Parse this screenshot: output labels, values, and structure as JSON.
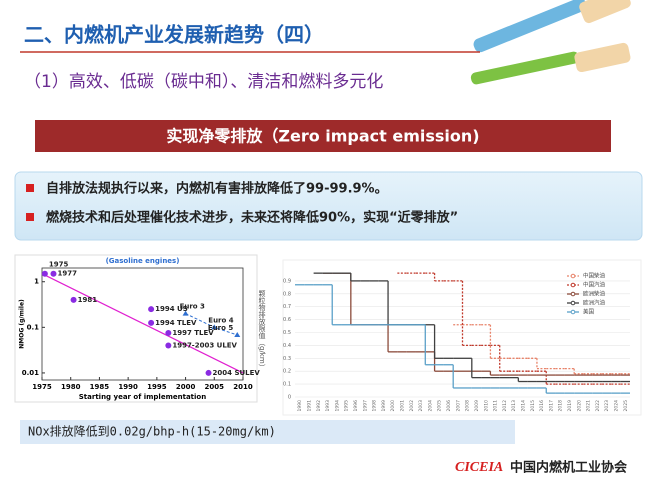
{
  "header": {
    "title": "二、内燃机产业发展新趋势（四）",
    "subtitle": "（1）高效、低碳（碳中和）、清洁和燃料多元化"
  },
  "banner": "实现净零排放（Zero impact emission)",
  "bullets": [
    "自排放法规执行以来，内燃机有害排放降低了99-99.9%。",
    "燃烧技术和后处理催化技术进步，未来还将降低90%，实现“近零排放”"
  ],
  "left_chart": {
    "type": "scatter",
    "title": "(Gasoline engines)",
    "x_label": "Starting year of implementation",
    "y_label": "NMOG (g/mile)",
    "log_y": true,
    "xlim": [
      1975,
      2010
    ],
    "xticks": [
      1975,
      1980,
      1985,
      1990,
      1995,
      2000,
      2005,
      2010
    ],
    "ylim": [
      0.007,
      2
    ],
    "yticks": [
      0.01,
      0.1,
      1
    ],
    "series": [
      {
        "color": "#8a2be2",
        "dashed": false,
        "labels": [
          "1975",
          "1977",
          "1981",
          "1994 US",
          "1994 TLEV",
          "1997 TLEV",
          "1997-2003 ULEV",
          "2004 SULEV"
        ],
        "x": [
          1975.5,
          1977,
          1980.5,
          1994,
          1994,
          1997,
          1997,
          2004
        ],
        "values": [
          1.5,
          1.5,
          0.4,
          0.25,
          0.125,
          0.075,
          0.04,
          0.01
        ]
      },
      {
        "color": "#2f6fd0",
        "dashed": true,
        "labels": [
          "Euro 3",
          "Euro 4",
          "Euro 5"
        ],
        "x": [
          2000,
          2005,
          2009
        ],
        "values": [
          0.2,
          0.1,
          0.068
        ]
      }
    ],
    "trend": {
      "color": "#e020d0",
      "x": [
        1975,
        2010
      ],
      "values": [
        1.5,
        0.01
      ]
    }
  },
  "right_chart": {
    "type": "line",
    "step": true,
    "y_label": "颗粒物排放限值（g/km）",
    "categories": [
      "1990",
      "1991",
      "1992",
      "1993",
      "1994",
      "1995",
      "1996",
      "1997",
      "1998",
      "1999",
      "2000",
      "2001",
      "2002",
      "2003",
      "2004",
      "2005",
      "2006",
      "2007",
      "2008",
      "2009",
      "2010",
      "2011",
      "2012",
      "2013",
      "2014",
      "2015",
      "2016",
      "2017",
      "2018",
      "2019",
      "2020",
      "2021",
      "2022",
      "2023",
      "2024",
      "2025"
    ],
    "ylim": [
      0,
      1
    ],
    "yticks": [
      0,
      0.1,
      0.2,
      0.3,
      0.4,
      0.5,
      0.6,
      0.7,
      0.8,
      0.9
    ],
    "grid": true,
    "series": [
      {
        "name": "中国柴油",
        "color": "#e8836a",
        "dashed": true,
        "values": [
          null,
          null,
          null,
          null,
          null,
          null,
          null,
          null,
          null,
          null,
          null,
          null,
          null,
          null,
          null,
          null,
          null,
          0.56,
          0.56,
          0.56,
          0.56,
          0.3,
          0.3,
          0.3,
          0.3,
          0.3,
          0.22,
          0.22,
          0.22,
          0.22,
          0.18,
          0.18,
          0.18,
          0.18,
          0.18,
          0.18
        ]
      },
      {
        "name": "中国汽油",
        "color": "#c0392b",
        "dashed": true,
        "values": [
          null,
          null,
          null,
          null,
          null,
          null,
          null,
          null,
          null,
          null,
          null,
          0.96,
          0.96,
          0.96,
          0.96,
          0.9,
          0.9,
          0.9,
          0.4,
          0.4,
          0.4,
          0.4,
          0.2,
          0.2,
          0.2,
          0.2,
          0.2,
          0.1,
          0.1,
          0.1,
          0.1,
          0.1,
          0.1,
          0.1,
          0.1,
          0.1
        ]
      },
      {
        "name": "欧洲柴油",
        "color": "#8b4a3a",
        "dashed": false,
        "values": [
          null,
          null,
          null,
          0.96,
          0.96,
          0.96,
          0.56,
          0.56,
          0.56,
          0.56,
          0.35,
          0.35,
          0.35,
          0.35,
          0.35,
          0.2,
          0.2,
          0.2,
          0.2,
          0.2,
          0.2,
          0.17,
          0.17,
          0.17,
          0.17,
          0.17,
          0.17,
          0.17,
          0.17,
          0.17,
          0.17,
          0.17,
          0.17,
          0.17,
          0.17,
          0.17
        ]
      },
      {
        "name": "欧洲汽油",
        "color": "#404040",
        "dashed": false,
        "values": [
          null,
          null,
          0.96,
          0.96,
          0.96,
          0.96,
          0.9,
          0.9,
          0.9,
          0.9,
          0.56,
          0.56,
          0.56,
          0.56,
          0.56,
          0.3,
          0.3,
          0.3,
          0.3,
          0.15,
          0.15,
          0.15,
          0.15,
          0.15,
          0.12,
          0.12,
          0.12,
          0.12,
          0.12,
          0.12,
          0.12,
          0.12,
          0.12,
          0.12,
          0.12,
          0.12
        ]
      },
      {
        "name": "美国",
        "color": "#5aa0c8",
        "dashed": false,
        "values": [
          0.87,
          0.87,
          0.87,
          0.87,
          0.56,
          0.56,
          0.56,
          0.56,
          0.56,
          0.56,
          0.56,
          0.56,
          0.56,
          0.56,
          0.25,
          0.25,
          0.25,
          0.07,
          0.07,
          0.07,
          0.07,
          0.07,
          0.07,
          0.07,
          0.07,
          0.07,
          0.07,
          0.03,
          0.03,
          0.03,
          0.03,
          0.03,
          0.03,
          0.03,
          0.03,
          0.03
        ]
      }
    ]
  },
  "note": "NOx排放降低到0.02g/bhp-h(15-20mg/km)",
  "footer": {
    "logo": "CICEIA",
    "org": "中国内燃机工业协会"
  }
}
